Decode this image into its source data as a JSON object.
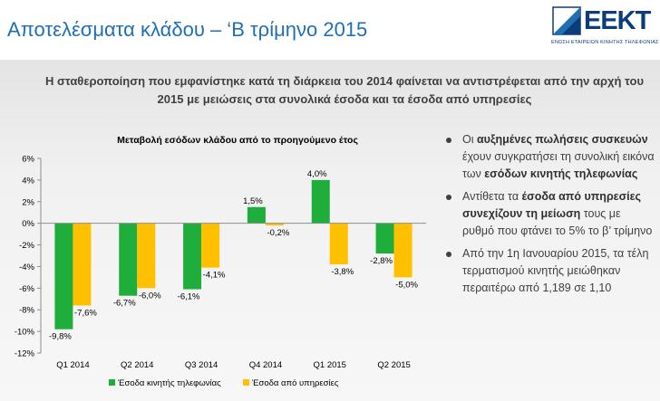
{
  "slide": {
    "title": "Αποτελέσματα κλάδου – ‘Β τρίμηνο 2015",
    "headline": "Η σταθεροποίηση που εμφανίστηκε κατά τη διάρκεια του 2014 φαίνεται να αντιστρέφεται από την αρχή του 2015 με μειώσεις στα συνολικά έσοδα και τα έσοδα από υπηρεσίες"
  },
  "logo": {
    "name": "ΕΕΚΤ",
    "subtitle": "ΕΝΩΣΗ ΕΤΑΙΡΕΙΩΝ ΚΙΝΗΤΗΣ ΤΗΛΕΦΩΝΙΑΣ",
    "mark_color": "#1f6fb5"
  },
  "chart_data": {
    "type": "bar",
    "title": "Μεταβολή εσόδων κλάδου από το προηγούμενο έτος",
    "categories": [
      "Q1 2014",
      "Q2 2014",
      "Q3 2014",
      "Q4 2014",
      "Q1 2015",
      "Q2 2015"
    ],
    "series": [
      {
        "name": "Έσοδα κινητής τηλεφωνίας",
        "color": "#1fae3c",
        "values": [
          -9.8,
          -6.7,
          -6.1,
          1.5,
          4.0,
          -2.8
        ],
        "labels": [
          "-9,8%",
          "-6,7%",
          "-6,1%",
          "1,5%",
          "4,0%",
          "-2,8%"
        ]
      },
      {
        "name": "Έσοδα από υπηρεσίες",
        "color": "#ffc000",
        "values": [
          -7.6,
          -6.0,
          -4.1,
          -0.2,
          -3.8,
          -5.0
        ],
        "labels": [
          "-7,6%",
          "-6,0%",
          "-4,1%",
          "-0,2%",
          "-3,8%",
          "-5,0%"
        ]
      }
    ],
    "ylim": [
      -12,
      6
    ],
    "yticks": [
      6,
      4,
      2,
      0,
      -2,
      -4,
      -6,
      -8,
      -10,
      -12
    ],
    "ytick_labels": [
      "6%",
      "4%",
      "2%",
      "0%",
      "-2%",
      "-4%",
      "-6%",
      "-8%",
      "-10%",
      "-12%"
    ],
    "xlabel": "",
    "ylabel": "",
    "legend_position": "bottom",
    "grid": false
  },
  "bullets": [
    {
      "parts": [
        {
          "text": "Οι ",
          "bold": false
        },
        {
          "text": "αυξημένες πωλήσεις συσκευών",
          "bold": true
        },
        {
          "text": " έχουν συγκρατήσει τη συνολική εικόνα των ",
          "bold": false
        },
        {
          "text": "εσόδων κινητής τηλεφωνίας",
          "bold": true
        }
      ]
    },
    {
      "parts": [
        {
          "text": "Αντίθετα τα ",
          "bold": false
        },
        {
          "text": "έσοδα από υπηρεσίες συνεχίζουν τη μείωση",
          "bold": true
        },
        {
          "text": " τους με ρυθμό που φτάνει το 5% το β’ τρίμηνο",
          "bold": false
        }
      ]
    },
    {
      "parts": [
        {
          "text": " Από την 1η Ιανουαρίου 2015, τα τέλη τερματισμού κινητής μειώθηκαν περαιτέρω από 1,189 σε 1,10",
          "bold": false
        }
      ]
    }
  ]
}
